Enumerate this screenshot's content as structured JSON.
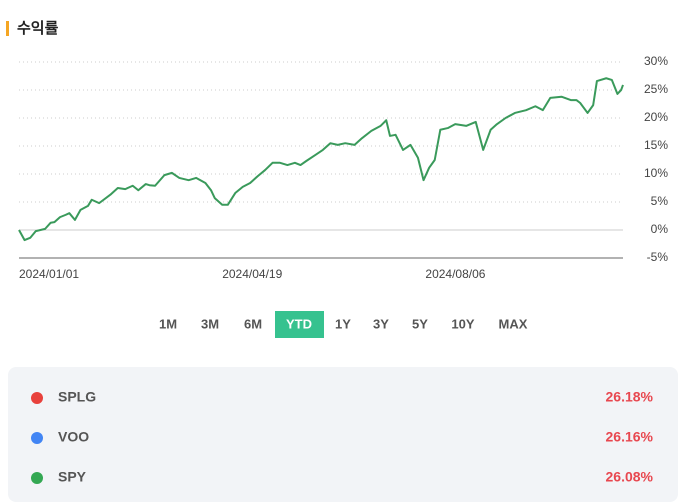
{
  "header": {
    "title": "수익률"
  },
  "chart_data": {
    "type": "line",
    "x": [
      0,
      3,
      6,
      9,
      14,
      17,
      19,
      22,
      25,
      27,
      30,
      33,
      37,
      39,
      43,
      49,
      53,
      57,
      61,
      64,
      68,
      70,
      73,
      78,
      82,
      86,
      91,
      95,
      100,
      103,
      105,
      109,
      112,
      116,
      120,
      124,
      128,
      132,
      136,
      140,
      144,
      148,
      151,
      154,
      159,
      163,
      167,
      171,
      175,
      180,
      184,
      189,
      194,
      197,
      199,
      202,
      206,
      210,
      214,
      217,
      220,
      223,
      226,
      230,
      234,
      240,
      245,
      249,
      253,
      256,
      261,
      266,
      272,
      277,
      281,
      285,
      291,
      296,
      299,
      301,
      305,
      308,
      310,
      315,
      318,
      321,
      323,
      324
    ],
    "series": [
      {
        "color": "#3a9a5b",
        "values": [
          0,
          -1.8,
          -1.4,
          -0.2,
          0.2,
          1.3,
          1.4,
          2.3,
          2.7,
          3.0,
          1.8,
          3.6,
          4.3,
          5.4,
          4.8,
          6.3,
          7.5,
          7.3,
          7.9,
          7.1,
          8.2,
          8.0,
          7.9,
          9.8,
          10.2,
          9.3,
          8.9,
          9.3,
          8.4,
          7.1,
          5.7,
          4.5,
          4.5,
          6.6,
          7.7,
          8.4,
          9.6,
          10.7,
          12.0,
          12.0,
          11.6,
          12.0,
          11.6,
          12.3,
          13.4,
          14.3,
          15.5,
          15.2,
          15.5,
          15.2,
          16.4,
          17.7,
          18.6,
          19.6,
          16.8,
          17.0,
          14.3,
          15.2,
          12.9,
          8.9,
          11.1,
          12.5,
          17.9,
          18.2,
          18.9,
          18.6,
          19.3,
          14.3,
          17.9,
          18.8,
          20.0,
          20.9,
          21.4,
          22.1,
          21.4,
          23.6,
          23.8,
          23.2,
          23.2,
          22.7,
          20.9,
          22.3,
          26.6,
          27.1,
          26.8,
          24.3,
          25.0,
          25.9
        ]
      }
    ],
    "xlim": [
      0,
      324
    ],
    "xticks": [
      {
        "value": 0,
        "label": "2024/01/01"
      },
      {
        "value": 109,
        "label": "2024/04/19"
      },
      {
        "value": 218,
        "label": "2024/08/06"
      }
    ],
    "ylim": [
      -5,
      30
    ],
    "yticks": [
      {
        "value": -5,
        "label": "-5%"
      },
      {
        "value": 0,
        "label": "0%"
      },
      {
        "value": 5,
        "label": "5%"
      },
      {
        "value": 10,
        "label": "10%"
      },
      {
        "value": 15,
        "label": "15%"
      },
      {
        "value": 20,
        "label": "20%"
      },
      {
        "value": 25,
        "label": "25%"
      },
      {
        "value": 30,
        "label": "30%"
      }
    ],
    "grid": true
  },
  "periods": {
    "options": [
      "1M",
      "3M",
      "6M",
      "YTD",
      "1Y",
      "3Y",
      "5Y",
      "10Y",
      "MAX"
    ],
    "active": 3
  },
  "returns": [
    {
      "name": "SPLG",
      "color": "#e8413c",
      "value": 26.18,
      "value_label": "26.18%"
    },
    {
      "name": "VOO",
      "color": "#4285f4",
      "value": 26.16,
      "value_label": "26.16%"
    },
    {
      "name": "SPY",
      "color": "#34a853",
      "value": 26.08,
      "value_label": "26.08%"
    }
  ]
}
